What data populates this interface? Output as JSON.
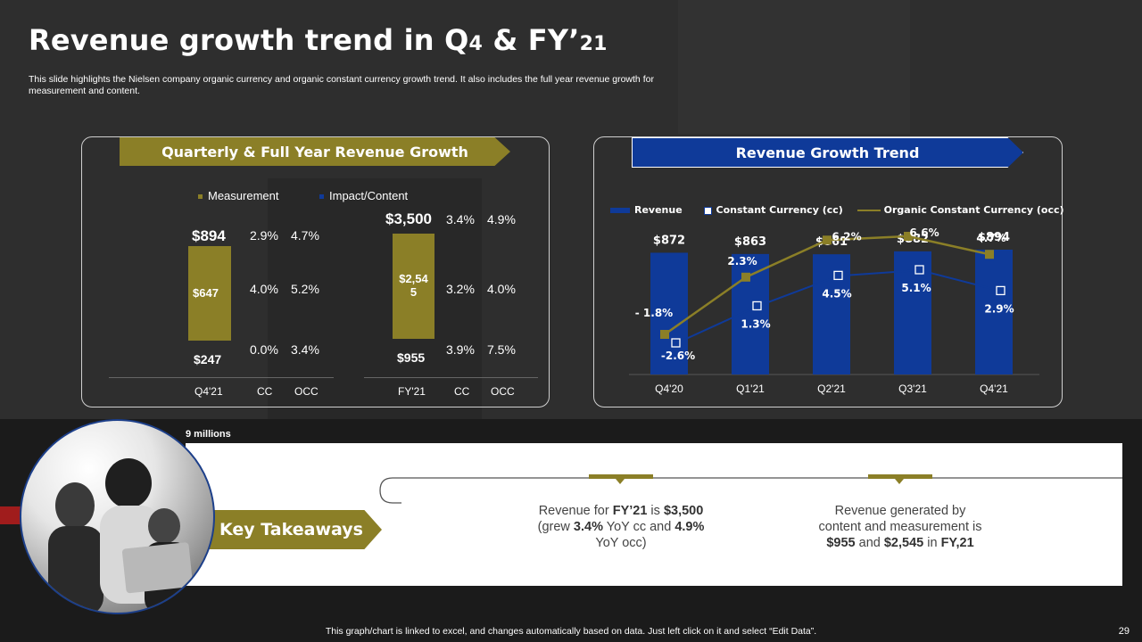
{
  "slide": {
    "title_main": "Revenue growth trend in Q",
    "title_4": "4",
    "title_mid": " & FY’",
    "title_21": "21",
    "description": "This slide highlights the Nielsen company organic currency and organic constant currency growth trend. It also includes the full year revenue growth for measurement and content.",
    "unit_note": "9 millions",
    "footer": "This graph/chart is linked to excel, and changes automatically based on data. Just left click on it and select “Edit Data”.",
    "page_number": "29"
  },
  "colors": {
    "gold": "#8b7f27",
    "blue": "#0f3a99",
    "background": "#2c2c2c"
  },
  "left_panel": {
    "header": "Quarterly & Full Year Revenue Growth",
    "legend": {
      "measurement": "Measurement",
      "impact": "Impact/Content"
    },
    "q4": {
      "total": "$894",
      "measurement_value": "$647",
      "content_value": "$247",
      "rows": [
        [
          "2.9%",
          "4.7%"
        ],
        [
          "4.0%",
          "5.2%"
        ],
        [
          "0.0%",
          "3.4%"
        ]
      ],
      "x_labels": [
        "Q4'21",
        "CC",
        "OCC"
      ]
    },
    "fy": {
      "total": "$3,500",
      "measurement_value": "$2,54\n5",
      "content_value": "$955",
      "rows": [
        [
          "3.4%",
          "4.9%"
        ],
        [
          "3.2%",
          "4.0%"
        ],
        [
          "3.9%",
          "7.5%"
        ]
      ],
      "x_labels": [
        "FY'21",
        "CC",
        "OCC"
      ]
    }
  },
  "right_panel": {
    "header": "Revenue Growth Trend",
    "legend": {
      "revenue": "Revenue",
      "cc": "Constant Currency (cc)",
      "occ": "Organic Constant Currency (occ)"
    }
  },
  "chart_data": {
    "type": "bar",
    "categories": [
      "Q4'20",
      "Q1'21",
      "Q2'21",
      "Q3'21",
      "Q4'21"
    ],
    "series": [
      {
        "name": "Revenue",
        "type": "bar",
        "values": [
          872,
          863,
          861,
          882,
          894
        ],
        "labels": [
          "$872",
          "$863",
          "$861",
          "$882",
          "$894"
        ]
      },
      {
        "name": "Constant Currency (cc)",
        "type": "line",
        "values": [
          -2.6,
          1.3,
          4.5,
          5.1,
          2.9
        ],
        "labels": [
          "-2.6%",
          "1.3%",
          "4.5%",
          "5.1%",
          "2.9%"
        ]
      },
      {
        "name": "Organic Constant Currency (occ)",
        "type": "line",
        "values": [
          -1.8,
          2.3,
          6.2,
          6.6,
          4.7
        ],
        "labels": [
          "- 1.8%",
          "2.3%",
          "6.2%",
          "6.6%",
          "4.7%"
        ]
      }
    ],
    "legend": "top"
  },
  "takeaways": {
    "label": "Key Takeaways",
    "t1_a": "Revenue for ",
    "t1_b": "FY’21",
    "t1_c": " is ",
    "t1_d": "$3,500",
    "t1_e": "(grew ",
    "t1_f": "3.4%",
    "t1_g": " YoY cc and ",
    "t1_h": "4.9%",
    "t1_i": "YoY occ)",
    "t2_a": "Revenue generated by",
    "t2_b": "content and measurement is",
    "t2_c": "$955",
    "t2_d": " and ",
    "t2_e": "$2,545",
    "t2_f": " in ",
    "t2_g": "FY,21"
  }
}
